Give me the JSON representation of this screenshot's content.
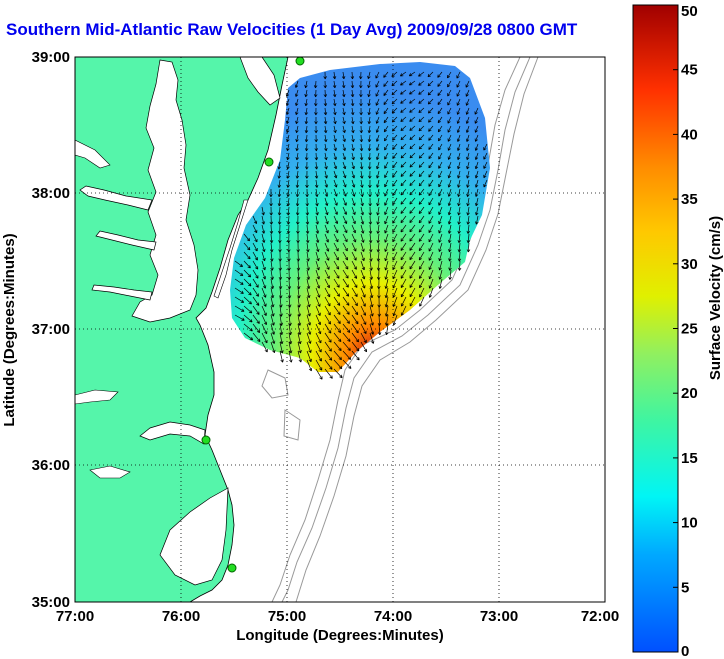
{
  "title": "Southern Mid-Atlantic Raw Velocities (1 Day Avg) 2009/09/28 0800 GMT",
  "map": {
    "xlabel": "Longitude (Degrees:Minutes)",
    "ylabel": "Latitude (Degrees:Minutes)",
    "x_ticks": [
      "77:00",
      "76:00",
      "75:00",
      "74:00",
      "73:00",
      "72:00"
    ],
    "y_ticks": [
      "39:00",
      "38:00",
      "37:00",
      "36:00",
      "35:00"
    ],
    "lon_range": [
      -77,
      -72
    ],
    "lat_range": [
      35,
      39
    ],
    "colors": {
      "land": "#55f5aa",
      "water": "#ffffff",
      "coast": "#000000",
      "bathymetry": "#999999",
      "station": "#22dd22"
    }
  },
  "colorbar": {
    "label": "Surface Velocity (cm/s)",
    "min": 0,
    "max": 50,
    "ticks": [
      "0",
      "5",
      "10",
      "15",
      "20",
      "25",
      "30",
      "35",
      "40",
      "45",
      "50"
    ]
  }
}
